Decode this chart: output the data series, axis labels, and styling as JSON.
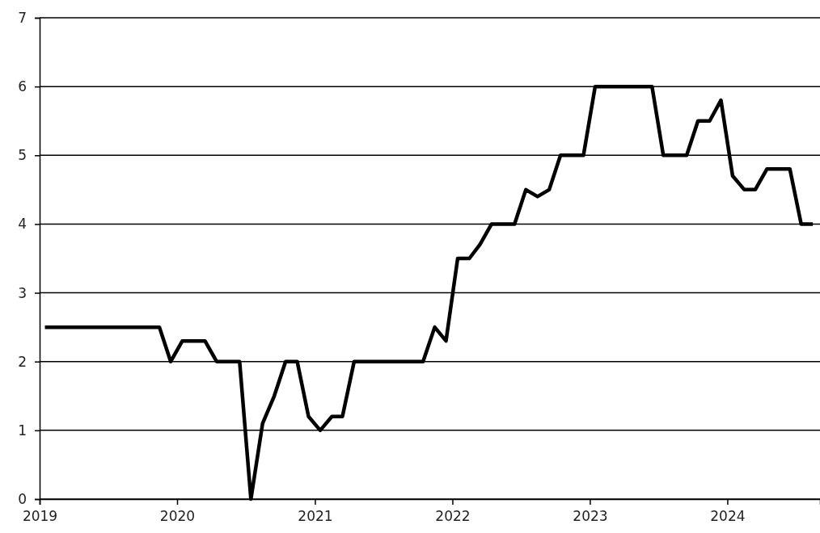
{
  "chart_data": {
    "type": "line",
    "x": [
      "2019-01-15",
      "2019-02-15",
      "2019-03-15",
      "2019-04-15",
      "2019-05-15",
      "2019-06-15",
      "2019-07-15",
      "2019-08-15",
      "2019-09-15",
      "2019-10-15",
      "2019-11-15",
      "2019-12-15",
      "2020-01-15",
      "2020-02-15",
      "2020-03-15",
      "2020-04-15",
      "2020-05-15",
      "2020-06-15",
      "2020-07-15",
      "2020-08-15",
      "2020-09-15",
      "2020-10-15",
      "2020-11-15",
      "2020-12-15",
      "2021-01-15",
      "2021-02-15",
      "2021-03-15",
      "2021-04-15",
      "2021-05-15",
      "2021-06-15",
      "2021-07-15",
      "2021-08-15",
      "2021-09-15",
      "2021-10-15",
      "2021-11-15",
      "2021-12-15",
      "2022-01-15",
      "2022-02-15",
      "2022-03-15",
      "2022-04-15",
      "2022-05-15",
      "2022-06-15",
      "2022-07-15",
      "2022-08-15",
      "2022-09-15",
      "2022-10-15",
      "2022-11-15",
      "2022-12-15",
      "2023-01-15",
      "2023-02-15",
      "2023-03-15",
      "2023-04-15",
      "2023-05-15",
      "2023-06-15",
      "2023-07-15",
      "2023-08-15",
      "2023-09-15",
      "2023-10-15",
      "2023-11-15",
      "2023-12-15",
      "2024-01-15",
      "2024-02-15",
      "2024-03-15",
      "2024-04-15",
      "2024-05-15",
      "2024-06-15",
      "2024-07-15",
      "2024-08-15"
    ],
    "series": [
      {
        "color": "#000000",
        "values": [
          2.5,
          2.5,
          2.5,
          2.5,
          2.5,
          2.5,
          2.5,
          2.5,
          2.5,
          2.5,
          2.5,
          2.0,
          2.3,
          2.3,
          2.3,
          2.0,
          2.0,
          2.0,
          0,
          1.1,
          1.5,
          2.0,
          2.0,
          1.2,
          1.0,
          1.2,
          1.2,
          2.0,
          2.0,
          2.0,
          2.0,
          2.0,
          2.0,
          2.0,
          2.5,
          2.3,
          3.5,
          3.5,
          3.7,
          4.0,
          4.0,
          4.0,
          4.5,
          4.4,
          4.5,
          5.0,
          5.0,
          5.0,
          6.0,
          6.0,
          6.0,
          6.0,
          6.0,
          6.0,
          5.0,
          5.0,
          5.0,
          5.5,
          5.5,
          5.8,
          4.7,
          4.5,
          4.5,
          4.8,
          4.8,
          4.8,
          4.0,
          4.0
        ]
      }
    ],
    "xlim": [
      "2019-01-01",
      "2024-09-03"
    ],
    "xticks": [
      {
        "value": "2019-01-01",
        "label": "2019"
      },
      {
        "value": "2020-01-01",
        "label": "2020"
      },
      {
        "value": "2021-01-01",
        "label": "2021"
      },
      {
        "value": "2022-01-01",
        "label": "2022"
      },
      {
        "value": "2023-01-01",
        "label": "2023"
      },
      {
        "value": "2024-01-01",
        "label": "2024"
      }
    ],
    "ylim": [
      0,
      7
    ],
    "yticks": [
      0,
      1,
      2,
      3,
      4,
      5,
      6,
      7
    ],
    "grid": "y",
    "marker": "none",
    "line_style": "solid"
  }
}
